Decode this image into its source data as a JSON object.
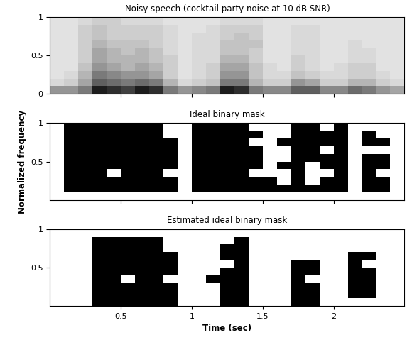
{
  "chart_data": [
    {
      "type": "heatmap",
      "title": "Noisy speech (cocktail party noise at 10 dB SNR)",
      "color": "Greys",
      "tick_labels": "y",
      "x": [
        0,
        0.1,
        0.2,
        0.3,
        0.4,
        0.5,
        0.6,
        0.7,
        0.8,
        0.9,
        1.0,
        1.1,
        1.2,
        1.3,
        1.4,
        1.5,
        1.6,
        1.7,
        1.8,
        1.9,
        2.0,
        2.1,
        2.2,
        2.3,
        2.4,
        2.5
      ],
      "y": [
        0,
        0.1,
        0.2,
        0.3,
        0.4,
        0.5,
        0.6,
        0.7,
        0.8,
        0.9,
        1.0
      ],
      "xlim": [
        0,
        2.5
      ],
      "ylim": [
        0,
        1
      ],
      "xticks": [
        0.5,
        1,
        1.5,
        2
      ],
      "yticks": [
        0,
        0.5,
        1
      ],
      "zlim": [
        0,
        1
      ],
      "cells": [
        [
          0.5,
          0.25,
          0.2,
          0.2,
          0.2,
          0.2,
          0.2,
          0.2,
          0.2,
          0.2
        ],
        [
          0.5,
          0.3,
          0.25,
          0.2,
          0.2,
          0.2,
          0.2,
          0.2,
          0.2,
          0.2
        ],
        [
          0.6,
          0.45,
          0.4,
          0.35,
          0.3,
          0.3,
          0.3,
          0.3,
          0.3,
          0.25
        ],
        [
          0.9,
          0.7,
          0.6,
          0.5,
          0.45,
          0.45,
          0.4,
          0.35,
          0.35,
          0.3
        ],
        [
          0.85,
          0.65,
          0.55,
          0.45,
          0.4,
          0.4,
          0.35,
          0.3,
          0.3,
          0.3
        ],
        [
          0.8,
          0.6,
          0.5,
          0.4,
          0.4,
          0.35,
          0.35,
          0.3,
          0.3,
          0.25
        ],
        [
          0.9,
          0.65,
          0.5,
          0.45,
          0.4,
          0.4,
          0.35,
          0.3,
          0.3,
          0.25
        ],
        [
          0.85,
          0.6,
          0.45,
          0.4,
          0.35,
          0.35,
          0.3,
          0.3,
          0.3,
          0.25
        ],
        [
          0.6,
          0.4,
          0.3,
          0.3,
          0.3,
          0.25,
          0.25,
          0.25,
          0.25,
          0.2
        ],
        [
          0.5,
          0.25,
          0.2,
          0.2,
          0.2,
          0.2,
          0.2,
          0.2,
          0.2,
          0.2
        ],
        [
          0.55,
          0.3,
          0.25,
          0.25,
          0.25,
          0.25,
          0.25,
          0.25,
          0.2,
          0.2
        ],
        [
          0.6,
          0.35,
          0.3,
          0.3,
          0.25,
          0.25,
          0.25,
          0.25,
          0.25,
          0.2
        ],
        [
          0.9,
          0.6,
          0.5,
          0.45,
          0.4,
          0.35,
          0.35,
          0.3,
          0.3,
          0.25
        ],
        [
          0.85,
          0.6,
          0.5,
          0.45,
          0.4,
          0.35,
          0.35,
          0.35,
          0.3,
          0.25
        ],
        [
          0.6,
          0.4,
          0.35,
          0.35,
          0.3,
          0.3,
          0.35,
          0.3,
          0.3,
          0.25
        ],
        [
          0.55,
          0.3,
          0.25,
          0.25,
          0.2,
          0.2,
          0.2,
          0.2,
          0.2,
          0.2
        ],
        [
          0.55,
          0.3,
          0.25,
          0.2,
          0.2,
          0.2,
          0.2,
          0.2,
          0.2,
          0.2
        ],
        [
          0.7,
          0.5,
          0.35,
          0.3,
          0.3,
          0.25,
          0.25,
          0.25,
          0.25,
          0.2
        ],
        [
          0.7,
          0.45,
          0.3,
          0.25,
          0.25,
          0.25,
          0.25,
          0.25,
          0.25,
          0.2
        ],
        [
          0.55,
          0.3,
          0.25,
          0.2,
          0.2,
          0.2,
          0.2,
          0.2,
          0.2,
          0.2
        ],
        [
          0.55,
          0.3,
          0.25,
          0.25,
          0.2,
          0.2,
          0.2,
          0.2,
          0.2,
          0.2
        ],
        [
          0.65,
          0.4,
          0.3,
          0.3,
          0.25,
          0.25,
          0.25,
          0.2,
          0.2,
          0.2
        ],
        [
          0.6,
          0.4,
          0.3,
          0.3,
          0.25,
          0.25,
          0.2,
          0.2,
          0.2,
          0.2
        ],
        [
          0.5,
          0.3,
          0.25,
          0.2,
          0.2,
          0.2,
          0.2,
          0.2,
          0.2,
          0.2
        ],
        [
          0.45,
          0.25,
          0.2,
          0.2,
          0.2,
          0.2,
          0.2,
          0.2,
          0.2,
          0.2
        ]
      ]
    },
    {
      "type": "heatmap",
      "title": "Ideal binary mask",
      "ylabel": "Normalized frequency",
      "color": "Greys",
      "tick_labels": "y",
      "x": [
        0,
        0.1,
        0.2,
        0.3,
        0.4,
        0.5,
        0.6,
        0.7,
        0.8,
        0.9,
        1.0,
        1.1,
        1.2,
        1.3,
        1.4,
        1.5,
        1.6,
        1.7,
        1.8,
        1.9,
        2.0,
        2.1,
        2.2,
        2.3,
        2.4,
        2.5
      ],
      "y": [
        0,
        0.1,
        0.2,
        0.3,
        0.4,
        0.5,
        0.6,
        0.7,
        0.8,
        0.9,
        1.0
      ],
      "xlim": [
        0,
        2.5
      ],
      "ylim": [
        0,
        1
      ],
      "xticks": [
        0.5,
        1,
        1.5,
        2
      ],
      "yticks": [
        0.5,
        1
      ],
      "zlim": [
        0,
        1
      ],
      "cells": [
        [
          0,
          0,
          0,
          0,
          0,
          0,
          0,
          0,
          0,
          0
        ],
        [
          0,
          1,
          1,
          1,
          1,
          1,
          1,
          1,
          1,
          1
        ],
        [
          0,
          1,
          1,
          1,
          1,
          1,
          1,
          1,
          1,
          1
        ],
        [
          0,
          1,
          1,
          1,
          1,
          1,
          1,
          1,
          1,
          1
        ],
        [
          0,
          1,
          1,
          0,
          1,
          1,
          1,
          1,
          1,
          1
        ],
        [
          0,
          1,
          1,
          1,
          1,
          1,
          1,
          1,
          1,
          1
        ],
        [
          0,
          1,
          1,
          1,
          1,
          1,
          1,
          1,
          1,
          1
        ],
        [
          0,
          1,
          1,
          1,
          1,
          1,
          1,
          1,
          1,
          1
        ],
        [
          0,
          1,
          1,
          0,
          1,
          1,
          1,
          1,
          0,
          0
        ],
        [
          0,
          0,
          0,
          0,
          0,
          0,
          0,
          0,
          0,
          0
        ],
        [
          0,
          1,
          1,
          1,
          1,
          1,
          1,
          1,
          1,
          1
        ],
        [
          0,
          1,
          1,
          1,
          1,
          1,
          1,
          1,
          1,
          1
        ],
        [
          0,
          1,
          1,
          1,
          1,
          1,
          1,
          1,
          1,
          1
        ],
        [
          0,
          1,
          1,
          1,
          1,
          1,
          1,
          1,
          1,
          1
        ],
        [
          0,
          1,
          1,
          0,
          1,
          1,
          1,
          0,
          1,
          0
        ],
        [
          0,
          1,
          1,
          0,
          0,
          0,
          0,
          0,
          0,
          0
        ],
        [
          0,
          1,
          0,
          0,
          1,
          0,
          0,
          1,
          0,
          0
        ],
        [
          0,
          1,
          1,
          1,
          1,
          1,
          1,
          1,
          1,
          1
        ],
        [
          0,
          1,
          0,
          0,
          0,
          1,
          1,
          1,
          1,
          1
        ],
        [
          0,
          1,
          1,
          0,
          1,
          1,
          0,
          1,
          1,
          0
        ],
        [
          0,
          1,
          1,
          1,
          1,
          1,
          1,
          1,
          1,
          1
        ],
        [
          0,
          0,
          0,
          0,
          0,
          0,
          0,
          0,
          0,
          0
        ],
        [
          0,
          1,
          1,
          1,
          1,
          1,
          0,
          1,
          1,
          0
        ],
        [
          0,
          1,
          1,
          0,
          1,
          1,
          0,
          1,
          0,
          0
        ],
        [
          0,
          0,
          0,
          0,
          0,
          0,
          0,
          0,
          0,
          0
        ]
      ]
    },
    {
      "type": "heatmap",
      "title": "Estimated ideal binary mask",
      "xlabel": "Time (sec)",
      "color": "Greys",
      "x": [
        0,
        0.1,
        0.2,
        0.3,
        0.4,
        0.5,
        0.6,
        0.7,
        0.8,
        0.9,
        1.0,
        1.1,
        1.2,
        1.3,
        1.4,
        1.5,
        1.6,
        1.7,
        1.8,
        1.9,
        2.0,
        2.1,
        2.2,
        2.3,
        2.4,
        2.5
      ],
      "y": [
        0,
        0.1,
        0.2,
        0.3,
        0.4,
        0.5,
        0.6,
        0.7,
        0.8,
        0.9,
        1.0
      ],
      "xlim": [
        0,
        2.5
      ],
      "ylim": [
        0,
        1
      ],
      "xticks": [
        0.5,
        1,
        1.5,
        2
      ],
      "yticks": [
        0.5,
        1
      ],
      "zlim": [
        0,
        1
      ],
      "cells": [
        [
          0,
          0,
          0,
          0,
          0,
          0,
          0,
          0,
          0,
          0
        ],
        [
          0,
          0,
          0,
          0,
          0,
          0,
          0,
          0,
          0,
          0
        ],
        [
          0,
          0,
          0,
          0,
          0,
          0,
          0,
          0,
          0,
          0
        ],
        [
          1,
          1,
          1,
          1,
          1,
          1,
          1,
          1,
          1,
          0
        ],
        [
          1,
          1,
          1,
          1,
          1,
          1,
          1,
          1,
          1,
          0
        ],
        [
          1,
          1,
          1,
          0,
          1,
          1,
          1,
          1,
          1,
          0
        ],
        [
          1,
          1,
          1,
          1,
          1,
          1,
          1,
          1,
          1,
          0
        ],
        [
          1,
          1,
          1,
          1,
          1,
          1,
          1,
          1,
          1,
          0
        ],
        [
          1,
          1,
          1,
          0,
          1,
          1,
          1,
          0,
          0,
          0
        ],
        [
          0,
          0,
          0,
          0,
          0,
          0,
          0,
          0,
          0,
          0
        ],
        [
          0,
          0,
          0,
          0,
          0,
          0,
          0,
          0,
          0,
          0
        ],
        [
          0,
          0,
          0,
          1,
          0,
          0,
          0,
          0,
          0,
          0
        ],
        [
          1,
          1,
          1,
          1,
          1,
          0,
          1,
          1,
          0,
          0
        ],
        [
          1,
          1,
          1,
          1,
          1,
          1,
          1,
          1,
          1,
          0
        ],
        [
          0,
          0,
          0,
          0,
          0,
          0,
          0,
          0,
          0,
          0
        ],
        [
          0,
          0,
          0,
          0,
          0,
          0,
          0,
          0,
          0,
          0
        ],
        [
          0,
          0,
          0,
          0,
          0,
          0,
          0,
          0,
          0,
          0
        ],
        [
          1,
          1,
          1,
          1,
          1,
          1,
          0,
          0,
          0,
          0
        ],
        [
          1,
          1,
          1,
          0,
          1,
          1,
          0,
          0,
          0,
          0
        ],
        [
          0,
          0,
          0,
          0,
          0,
          0,
          0,
          0,
          0,
          0
        ],
        [
          0,
          0,
          0,
          0,
          0,
          0,
          0,
          0,
          0,
          0
        ],
        [
          0,
          1,
          1,
          1,
          1,
          1,
          1,
          0,
          0,
          0
        ],
        [
          0,
          1,
          1,
          1,
          1,
          0,
          1,
          0,
          0,
          0
        ],
        [
          0,
          0,
          0,
          0,
          0,
          0,
          0,
          0,
          0,
          0
        ],
        [
          0,
          0,
          0,
          0,
          0,
          0,
          0,
          0,
          0,
          0
        ]
      ]
    }
  ]
}
